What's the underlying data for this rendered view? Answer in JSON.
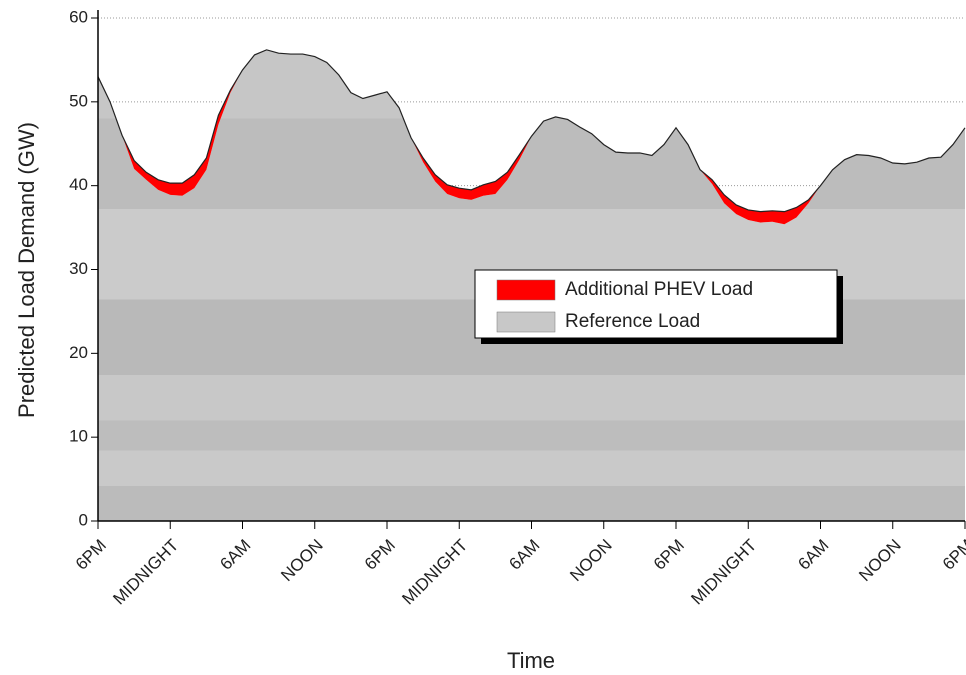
{
  "chart_data": {
    "type": "stacked_area",
    "xlabel": "Time",
    "ylabel": "Predicted Load Demand (GW)",
    "x": [
      0,
      1,
      2,
      3,
      4,
      5,
      6,
      7,
      8,
      9,
      10,
      11,
      12,
      13,
      14,
      15,
      16,
      17,
      18,
      19,
      20,
      21,
      22,
      23,
      24,
      25,
      26,
      27,
      28,
      29,
      30,
      31,
      32,
      33,
      34,
      35,
      36,
      37,
      38,
      39,
      40,
      41,
      42,
      43,
      44,
      45,
      46,
      47,
      48,
      49,
      50,
      51,
      52,
      53,
      54,
      55,
      56,
      57,
      58,
      59,
      60,
      61,
      62,
      63,
      64,
      65,
      66,
      67,
      68,
      69,
      70,
      71,
      72
    ],
    "series": [
      {
        "name": "Reference Load",
        "color": "#c4c4c4",
        "values": [
          53,
          50,
          46,
          42,
          40.7,
          39.5,
          38.9,
          38.8,
          39.7,
          41.9,
          47.3,
          51.1,
          53.8,
          55.6,
          56.2,
          55.8,
          55.7,
          55.7,
          55.4,
          54.7,
          53.2,
          51.1,
          50.4,
          50.8,
          51.2,
          49.3,
          45.7,
          42.8,
          40.5,
          39,
          38.5,
          38.3,
          38.8,
          39,
          40.7,
          43.1,
          45.9,
          47.7,
          48.2,
          47.9,
          47,
          46.2,
          44.9,
          44,
          43.9,
          43.9,
          43.6,
          44.9,
          46.9,
          44.9,
          41.9,
          40.2,
          37.9,
          36.6,
          35.9,
          35.6,
          35.7,
          35.4,
          36.2,
          37.9,
          40,
          41.9,
          43.1,
          43.7,
          43.6,
          43.3,
          42.7,
          42.6,
          42.8,
          43.3,
          43.4,
          44.9,
          46.9
        ]
      },
      {
        "name": "Additional PHEV Load",
        "color": "#ff0000",
        "values": [
          0,
          0,
          0,
          1,
          0.9,
          1.2,
          1.4,
          1.5,
          1.6,
          1.4,
          1.1,
          0.3,
          0,
          0,
          0,
          0,
          0,
          0,
          0,
          0,
          0,
          0,
          0,
          0,
          0,
          0,
          0,
          0.5,
          0.8,
          1.1,
          1.2,
          1.2,
          1.3,
          1.5,
          0.9,
          0.6,
          0,
          0,
          0,
          0,
          0,
          0,
          0,
          0,
          0,
          0,
          0,
          0,
          0,
          0,
          0,
          0.5,
          1,
          1.1,
          1.2,
          1.3,
          1.3,
          1.5,
          1.2,
          0.4,
          0,
          0,
          0,
          0,
          0,
          0,
          0,
          0,
          0,
          0,
          0,
          0,
          0
        ]
      }
    ],
    "xlim": [
      0,
      72
    ],
    "xticks": [
      {
        "value": 0,
        "label": "6PM"
      },
      {
        "value": 6,
        "label": "MIDNIGHT"
      },
      {
        "value": 12,
        "label": "6AM"
      },
      {
        "value": 18,
        "label": "NOON"
      },
      {
        "value": 24,
        "label": "6PM"
      },
      {
        "value": 30,
        "label": "MIDNIGHT"
      },
      {
        "value": 36,
        "label": "6AM"
      },
      {
        "value": 42,
        "label": "NOON"
      },
      {
        "value": 48,
        "label": "6PM"
      },
      {
        "value": 54,
        "label": "MIDNIGHT"
      },
      {
        "value": 60,
        "label": "6AM"
      },
      {
        "value": 66,
        "label": "NOON"
      },
      {
        "value": 72,
        "label": "6PM"
      }
    ],
    "ylim": [
      0,
      60
    ],
    "yticks": [
      0,
      10,
      20,
      30,
      40,
      50,
      60
    ],
    "grid": true,
    "legend": "center-right"
  }
}
